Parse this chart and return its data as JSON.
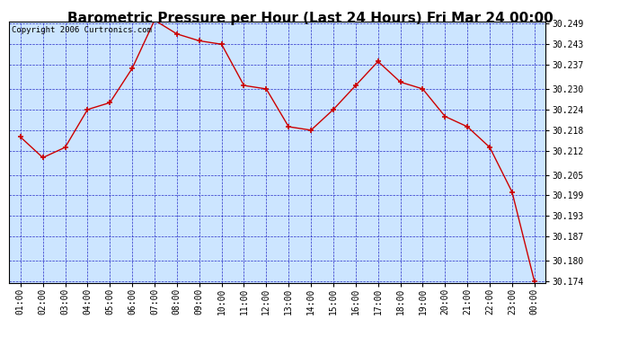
{
  "title": "Barometric Pressure per Hour (Last 24 Hours) Fri Mar 24 00:00",
  "copyright": "Copyright 2006 Curtronics.com",
  "x_labels": [
    "01:00",
    "02:00",
    "03:00",
    "04:00",
    "05:00",
    "06:00",
    "07:00",
    "08:00",
    "09:00",
    "10:00",
    "11:00",
    "12:00",
    "13:00",
    "14:00",
    "15:00",
    "16:00",
    "17:00",
    "18:00",
    "19:00",
    "20:00",
    "21:00",
    "22:00",
    "23:00",
    "00:00"
  ],
  "pressure_data": {
    "01:00": 30.216,
    "02:00": 30.21,
    "03:00": 30.213,
    "04:00": 30.224,
    "05:00": 30.226,
    "06:00": 30.236,
    "07:00": 30.25,
    "08:00": 30.246,
    "09:00": 30.244,
    "10:00": 30.243,
    "11:00": 30.231,
    "12:00": 30.23,
    "13:00": 30.219,
    "14:00": 30.218,
    "15:00": 30.224,
    "16:00": 30.231,
    "17:00": 30.238,
    "18:00": 30.232,
    "19:00": 30.23,
    "20:00": 30.222,
    "21:00": 30.219,
    "22:00": 30.213,
    "23:00": 30.2,
    "00:00": 30.174
  },
  "line_color": "#cc0000",
  "marker_color": "#cc0000",
  "plot_bg_color": "#cce5ff",
  "grid_color": "#0000bb",
  "title_bg_color": "#ffffff",
  "border_color": "#000000",
  "ylim_min": 30.174,
  "ylim_max": 30.249,
  "ytick_values": [
    30.249,
    30.243,
    30.237,
    30.23,
    30.224,
    30.218,
    30.212,
    30.205,
    30.199,
    30.193,
    30.187,
    30.18,
    30.174
  ],
  "title_fontsize": 11,
  "copyright_fontsize": 6.5,
  "tick_fontsize": 7,
  "ytick_fontsize": 7
}
